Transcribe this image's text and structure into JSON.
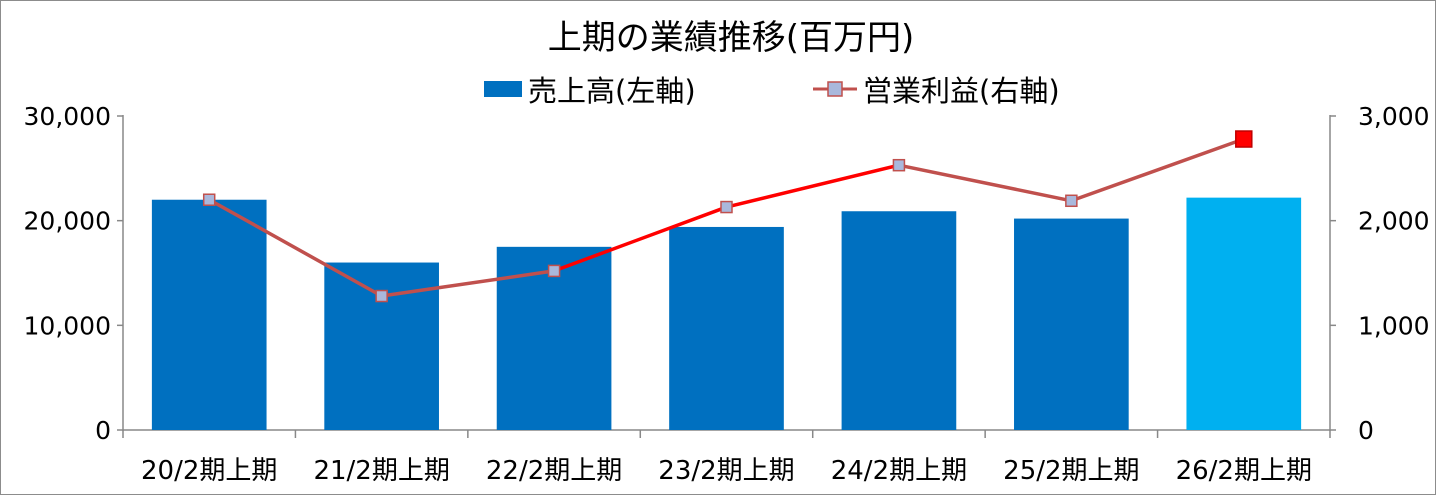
{
  "chart_data": {
    "type": "bar",
    "title": "上期の業績推移(百万円)",
    "categories": [
      "20/2期上期",
      "21/2期上期",
      "22/2期上期",
      "23/2期上期",
      "24/2期上期",
      "25/2期上期",
      "26/2期上期"
    ],
    "series": [
      {
        "name": "売上高(左軸)",
        "type": "bar",
        "axis": "left",
        "values": [
          22000,
          16000,
          17500,
          19400,
          20900,
          20200,
          22200
        ],
        "color": "#0070C0",
        "highlight_color": "#00B0F0"
      },
      {
        "name": "営業利益(右軸)",
        "type": "line",
        "axis": "right",
        "values": [
          2200,
          1280,
          1520,
          2130,
          2530,
          2190,
          2780
        ],
        "color": "#C0504D",
        "marker_color": "#A9B8DC",
        "highlight_color": "#FF0000"
      }
    ],
    "y_left": {
      "ylim": [
        0,
        30000
      ],
      "ticks": [
        "0",
        "10,000",
        "20,000",
        "30,000"
      ]
    },
    "y_right": {
      "ylim": [
        0,
        3000
      ],
      "ticks": [
        "0",
        "1,000",
        "2,000",
        "3,000"
      ]
    },
    "legend_position": "top",
    "grid": false
  }
}
